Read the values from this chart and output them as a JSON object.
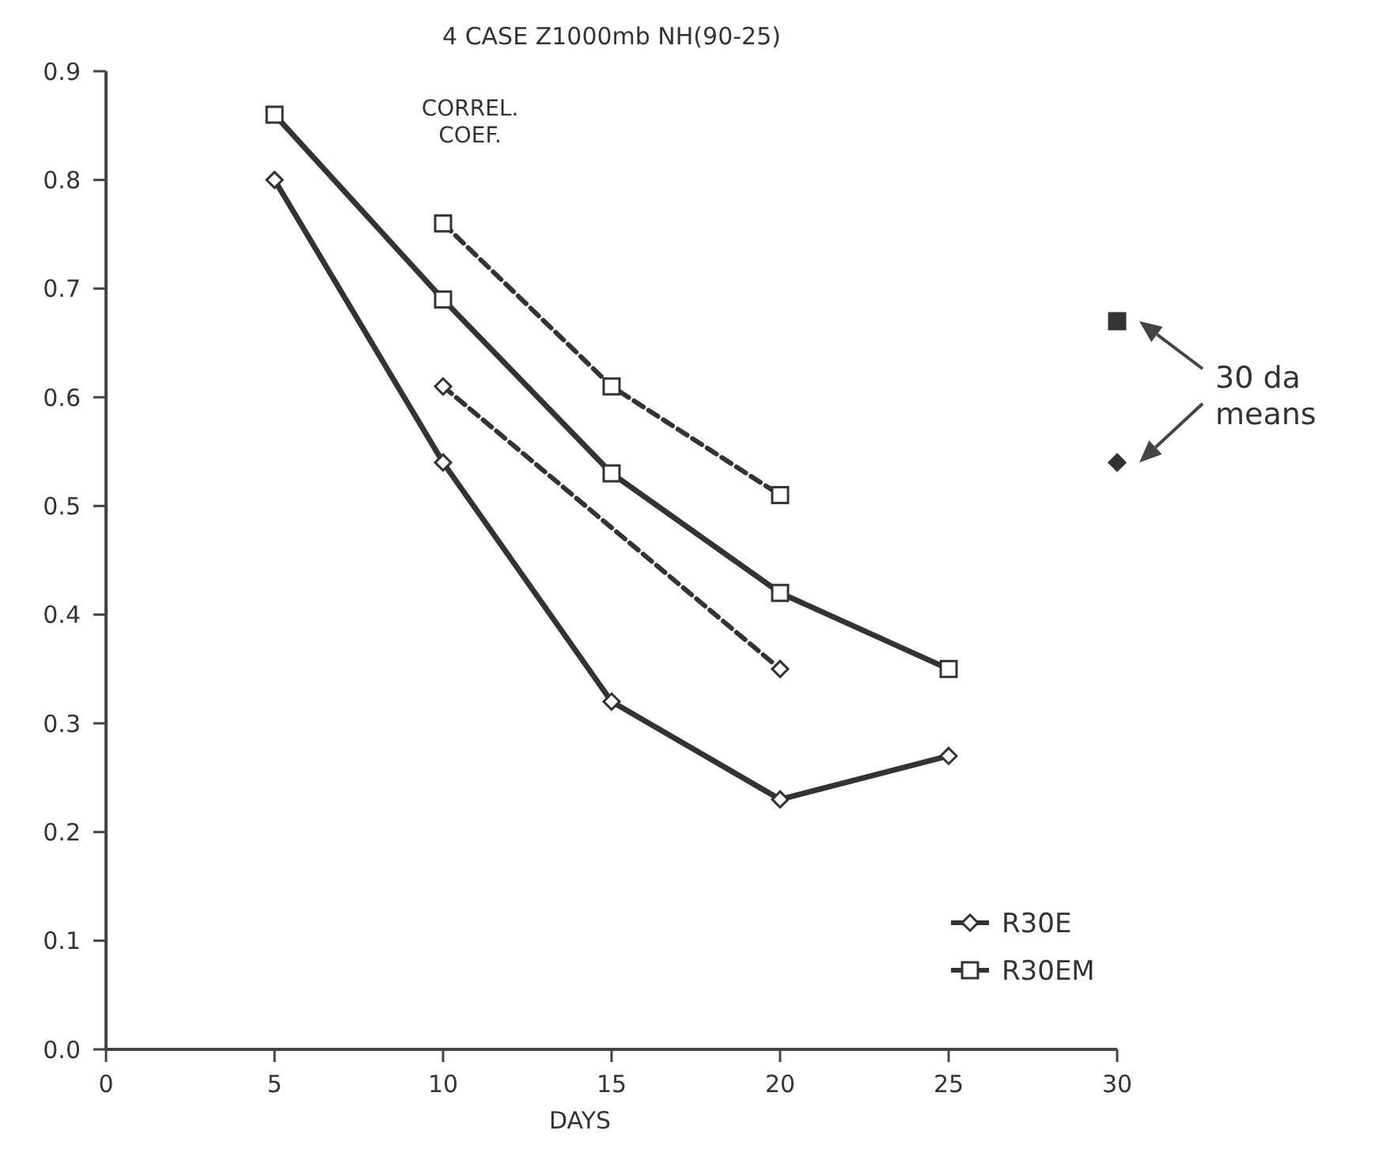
{
  "chart_data": {
    "type": "line",
    "title": "4 CASE Z1000mb NH(90-25)",
    "xlabel": "DAYS",
    "xlim": [
      0,
      30
    ],
    "xticks": [
      0,
      5,
      10,
      15,
      20,
      25,
      30
    ],
    "ylim": [
      0,
      0.9
    ],
    "yticks": [
      {
        "value": 0,
        "label": "0.0"
      },
      0.1,
      0.2,
      0.3,
      0.4,
      0.5,
      0.6,
      0.7,
      0.8,
      0.9
    ],
    "grid": false,
    "legend": "bottom right",
    "annotations": [
      "CORREL.\nCOEF.",
      "30 da\nmeans"
    ],
    "series": [
      {
        "name": "R30E",
        "color": "#333333",
        "marker": "diamond",
        "line_style": "solid",
        "x": [
          5,
          10,
          15,
          20,
          25
        ],
        "values": [
          0.8,
          0.54,
          0.32,
          0.23,
          0.27
        ]
      },
      {
        "name": "R30EM",
        "color": "#333333",
        "marker": "square",
        "line_style": "solid",
        "x": [
          5,
          10,
          15,
          20,
          25
        ],
        "values": [
          0.86,
          0.69,
          0.53,
          0.42,
          0.35
        ]
      },
      {
        "color": "#333333",
        "marker": "diamond",
        "line_style": "dashed",
        "x": [
          10,
          20
        ],
        "values": [
          0.61,
          0.35
        ]
      },
      {
        "color": "#333333",
        "marker": "square",
        "line_style": "dashed",
        "x": [
          10,
          15,
          20
        ],
        "values": [
          0.76,
          0.61,
          0.51
        ]
      },
      {
        "type": "scatter",
        "color": "#333333",
        "marker": "square",
        "x": [
          30
        ],
        "values": [
          0.67
        ]
      },
      {
        "type": "scatter",
        "color": "#333333",
        "marker": "diamond",
        "x": [
          30
        ],
        "values": [
          0.54
        ]
      }
    ]
  }
}
